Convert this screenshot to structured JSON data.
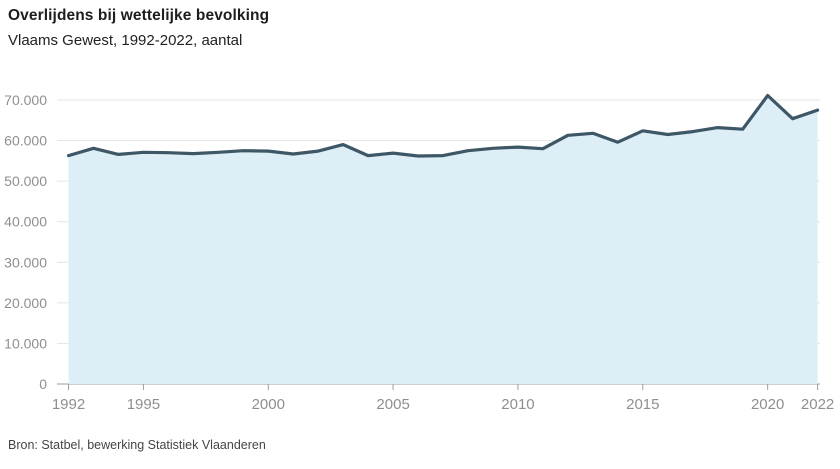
{
  "header": {},
  "footer": {
    "source": "Bron: Statbel, bewerking Statistiek Vlaanderen"
  },
  "chart_data": {
    "type": "area",
    "title": "Overlijdens bij wettelijke bevolking",
    "subtitle": "Vlaams Gewest, 1992-2022, aantal",
    "xlabel": "",
    "ylabel": "",
    "x": [
      1992,
      1993,
      1994,
      1995,
      1996,
      1997,
      1998,
      1999,
      2000,
      2001,
      2002,
      2003,
      2004,
      2005,
      2006,
      2007,
      2008,
      2009,
      2010,
      2011,
      2012,
      2013,
      2014,
      2015,
      2016,
      2017,
      2018,
      2019,
      2020,
      2021,
      2022
    ],
    "series": [
      {
        "name": "Overlijdens bij wettelijke bevolking",
        "values": [
          56300,
          58100,
          56600,
          57100,
          57000,
          56800,
          57100,
          57500,
          57400,
          56700,
          57400,
          59000,
          56300,
          56900,
          56200,
          56300,
          57500,
          58100,
          58400,
          58000,
          61300,
          61800,
          59600,
          62400,
          61500,
          62200,
          63200,
          62800,
          71100,
          65400,
          67500
        ]
      }
    ],
    "ylim": [
      0,
      70000
    ],
    "y_ticks": [
      {
        "value": 0,
        "label": "0"
      },
      {
        "value": 10000,
        "label": "10.000"
      },
      {
        "value": 20000,
        "label": "20.000"
      },
      {
        "value": 30000,
        "label": "30.000"
      },
      {
        "value": 40000,
        "label": "40.000"
      },
      {
        "value": 50000,
        "label": "50.000"
      },
      {
        "value": 60000,
        "label": "60.000"
      },
      {
        "value": 70000,
        "label": "70.000"
      }
    ],
    "x_ticks": [
      {
        "year": 1992,
        "label": "1992"
      },
      {
        "year": 1995,
        "label": "1995"
      },
      {
        "year": 2000,
        "label": "2000"
      },
      {
        "year": 2005,
        "label": "2005"
      },
      {
        "year": 2010,
        "label": "2010"
      },
      {
        "year": 2015,
        "label": "2015"
      },
      {
        "year": 2020,
        "label": "2020"
      },
      {
        "year": 2022,
        "label": "2022"
      }
    ],
    "grid": true,
    "legend_position": "none",
    "colors": {
      "line": "#3d5766",
      "area_fill": "#ddeef7",
      "gridline": "#e4e4e4",
      "axis": "#9c9c9c",
      "tick_label": "#8f8f8f"
    }
  }
}
